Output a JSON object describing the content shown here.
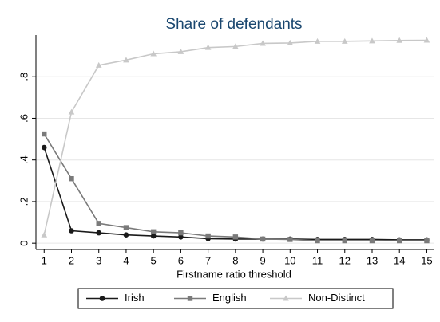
{
  "chart_data": {
    "type": "line",
    "title": "Share of defendants",
    "x_label": "Firstname ratio threshold",
    "x": [
      1,
      2,
      3,
      4,
      5,
      6,
      7,
      8,
      9,
      10,
      11,
      12,
      13,
      14,
      15
    ],
    "xlim": [
      0.7,
      15.25
    ],
    "xticks": [
      1,
      2,
      3,
      4,
      5,
      6,
      7,
      8,
      9,
      10,
      11,
      12,
      13,
      14,
      15
    ],
    "ylim": [
      -0.03,
      1.0
    ],
    "yticks": [
      0,
      {
        "value": 0.2,
        "label": ".2"
      },
      {
        "value": 0.4,
        "label": ".4"
      },
      {
        "value": 0.6,
        "label": ".6"
      },
      {
        "value": 0.8,
        "label": ".8"
      }
    ],
    "grid": true,
    "legend": "bottom",
    "series": [
      {
        "name": "Irish",
        "color": "#1a1a1a",
        "marker": "circle",
        "values": [
          0.46,
          0.06,
          0.05,
          0.04,
          0.035,
          0.03,
          0.022,
          0.02,
          0.02,
          0.02,
          0.018,
          0.018,
          0.018,
          0.016,
          0.016
        ]
      },
      {
        "name": "English",
        "color": "#7a7a7a",
        "marker": "square",
        "values": [
          0.525,
          0.31,
          0.095,
          0.075,
          0.055,
          0.05,
          0.035,
          0.03,
          0.02,
          0.018,
          0.012,
          0.012,
          0.012,
          0.012,
          0.012
        ]
      },
      {
        "name": "Non-Distinct",
        "color": "#c8c8c8",
        "marker": "triangle",
        "values": [
          0.04,
          0.63,
          0.855,
          0.88,
          0.91,
          0.92,
          0.94,
          0.945,
          0.96,
          0.962,
          0.97,
          0.97,
          0.972,
          0.974,
          0.975
        ]
      }
    ]
  }
}
